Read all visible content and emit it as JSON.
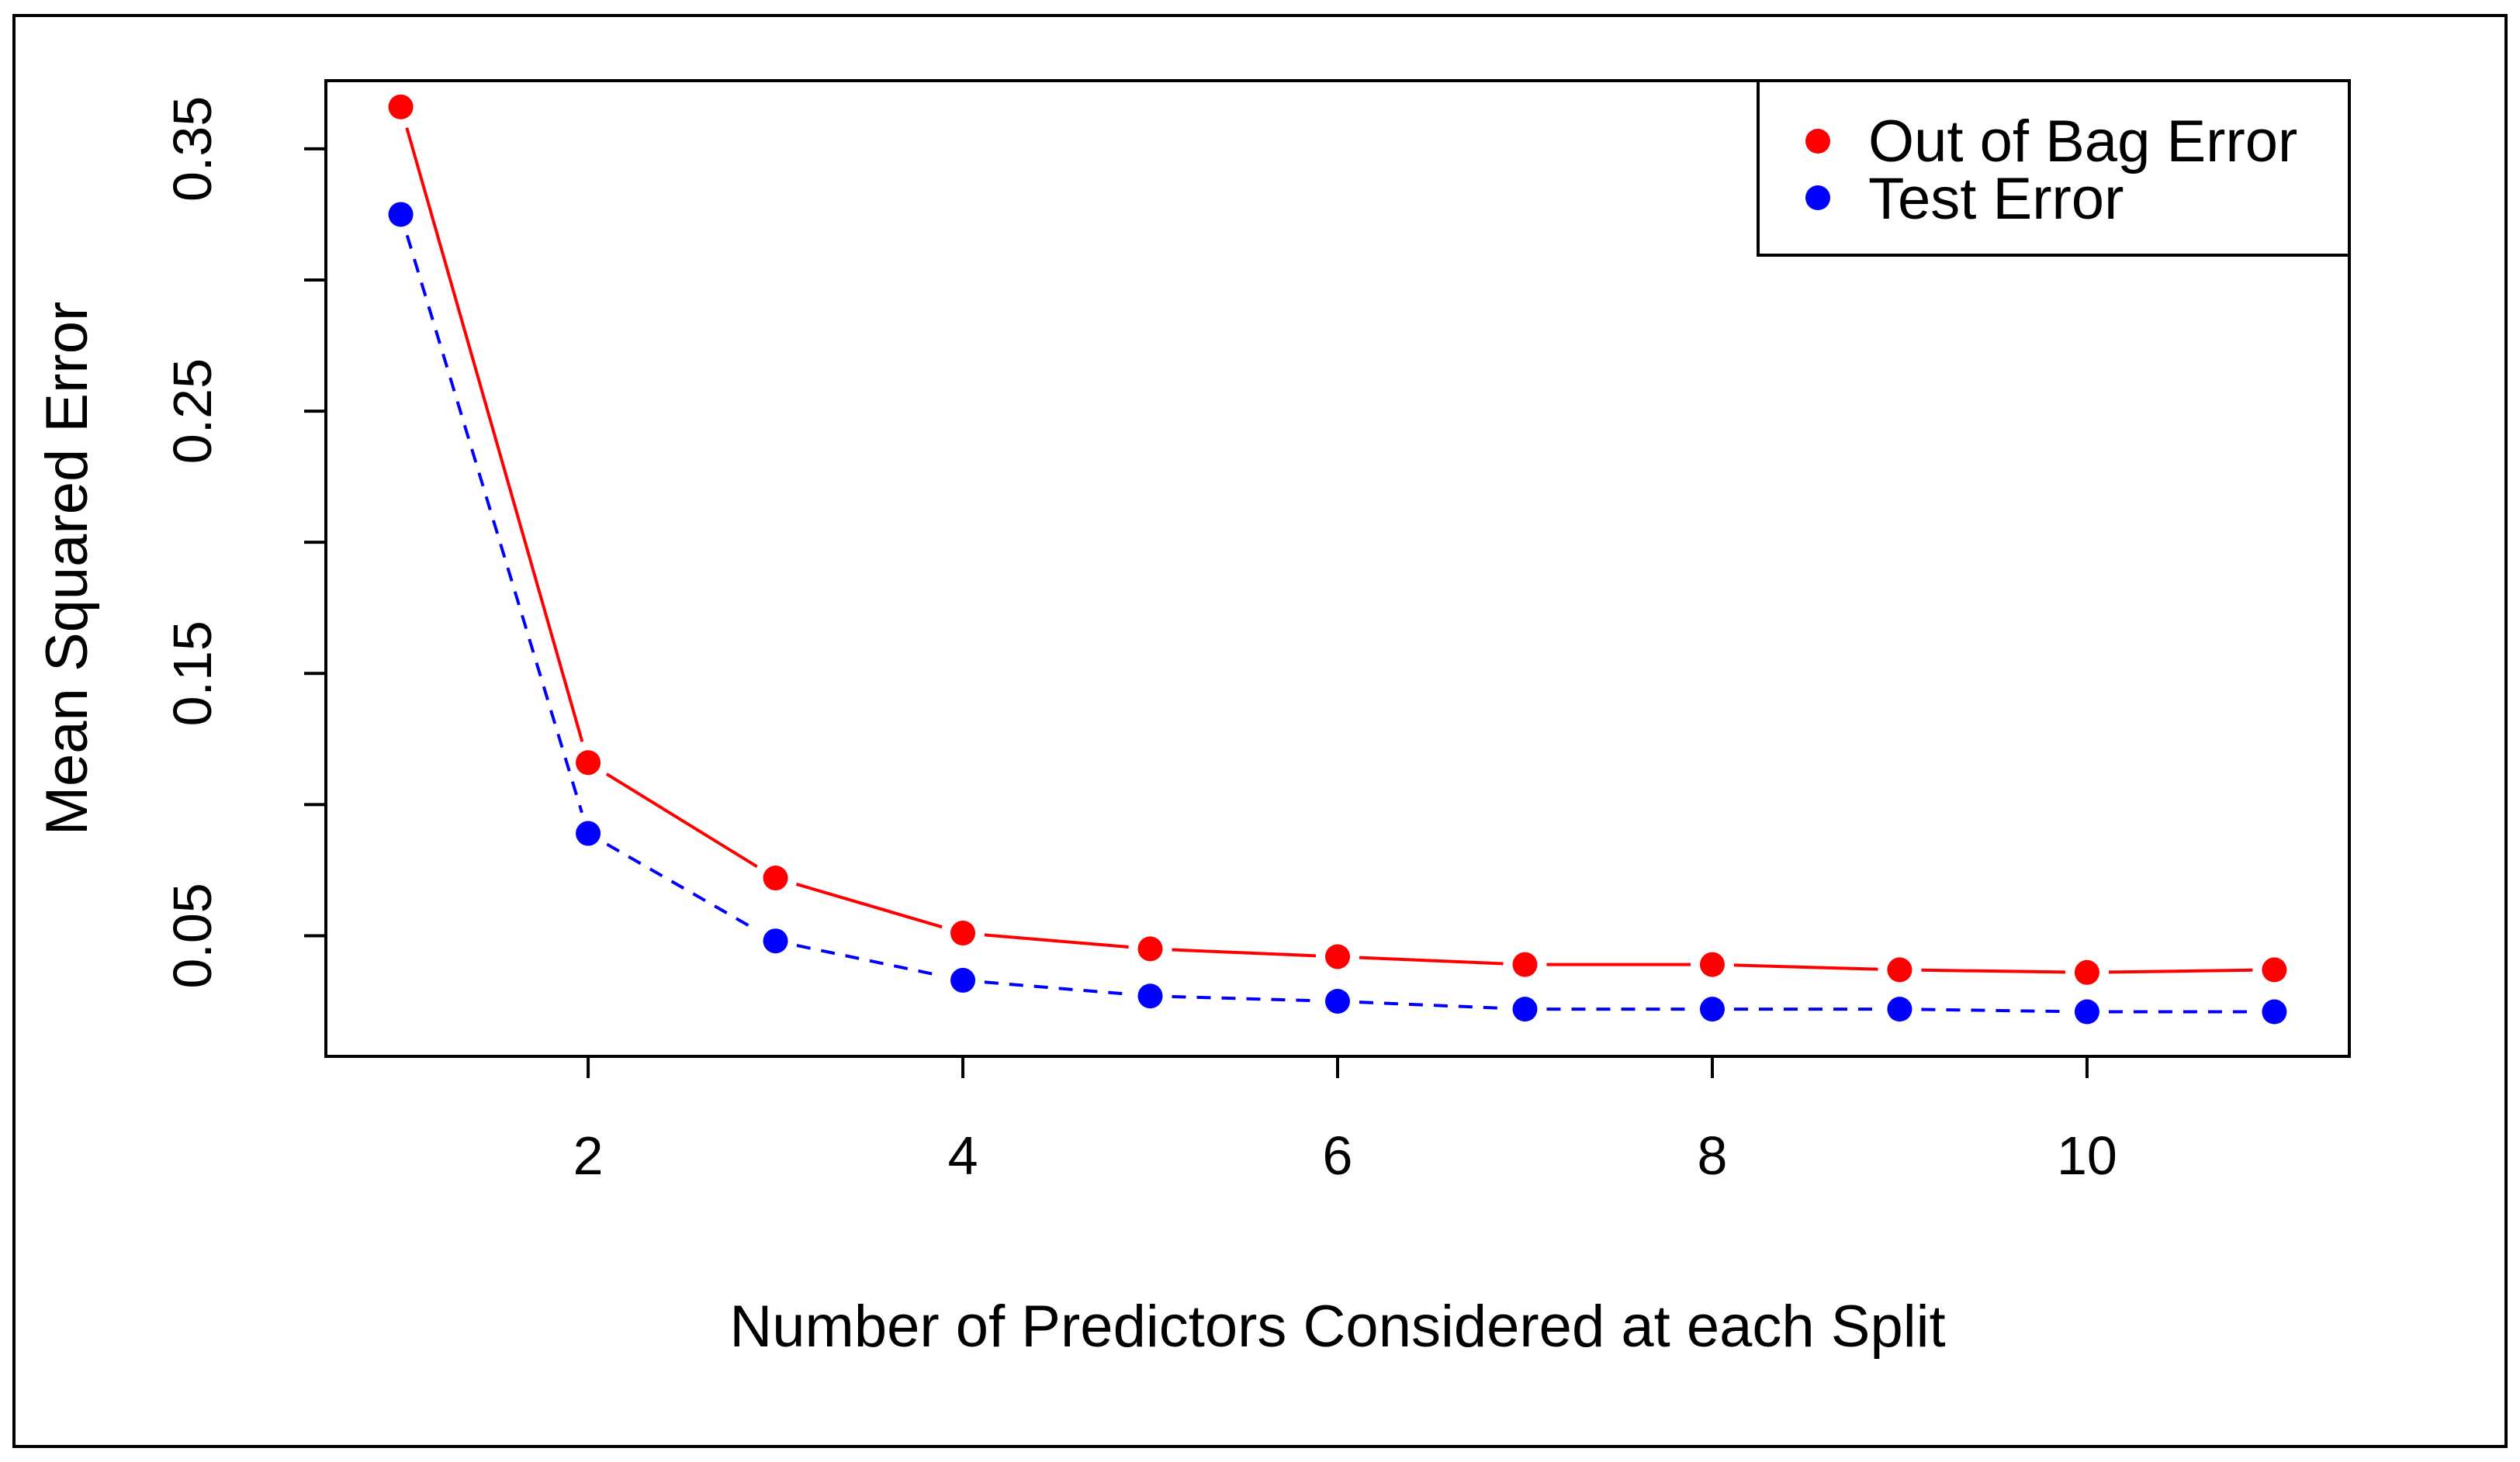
{
  "chart_data": {
    "type": "line",
    "title": "",
    "xlabel": "Number of Predictors Considered at each Split",
    "ylabel": "Mean Squared Error",
    "xlim": [
      0.6,
      11.4
    ],
    "ylim": [
      0.004,
      0.376
    ],
    "x_ticks": [
      2,
      4,
      6,
      8,
      10
    ],
    "y_ticks": [
      0.05,
      0.1,
      0.15,
      0.2,
      0.25,
      0.3,
      0.35
    ],
    "y_tick_labels": [
      "0.05",
      "0.15",
      "0.25",
      "0.35"
    ],
    "x": [
      1,
      2,
      3,
      4,
      5,
      6,
      7,
      8,
      9,
      10,
      11
    ],
    "legend_position": "top-right",
    "grid": false,
    "series": [
      {
        "name": "Out of Bag Error",
        "color": "#ff0000",
        "line_style": "solid",
        "values": [
          0.366,
          0.116,
          0.072,
          0.051,
          0.045,
          0.042,
          0.039,
          0.039,
          0.037,
          0.036,
          0.037
        ]
      },
      {
        "name": "Test Error",
        "color": "#0000ff",
        "line_style": "dashed",
        "values": [
          0.325,
          0.089,
          0.048,
          0.033,
          0.027,
          0.025,
          0.022,
          0.022,
          0.022,
          0.021,
          0.021
        ]
      }
    ]
  }
}
